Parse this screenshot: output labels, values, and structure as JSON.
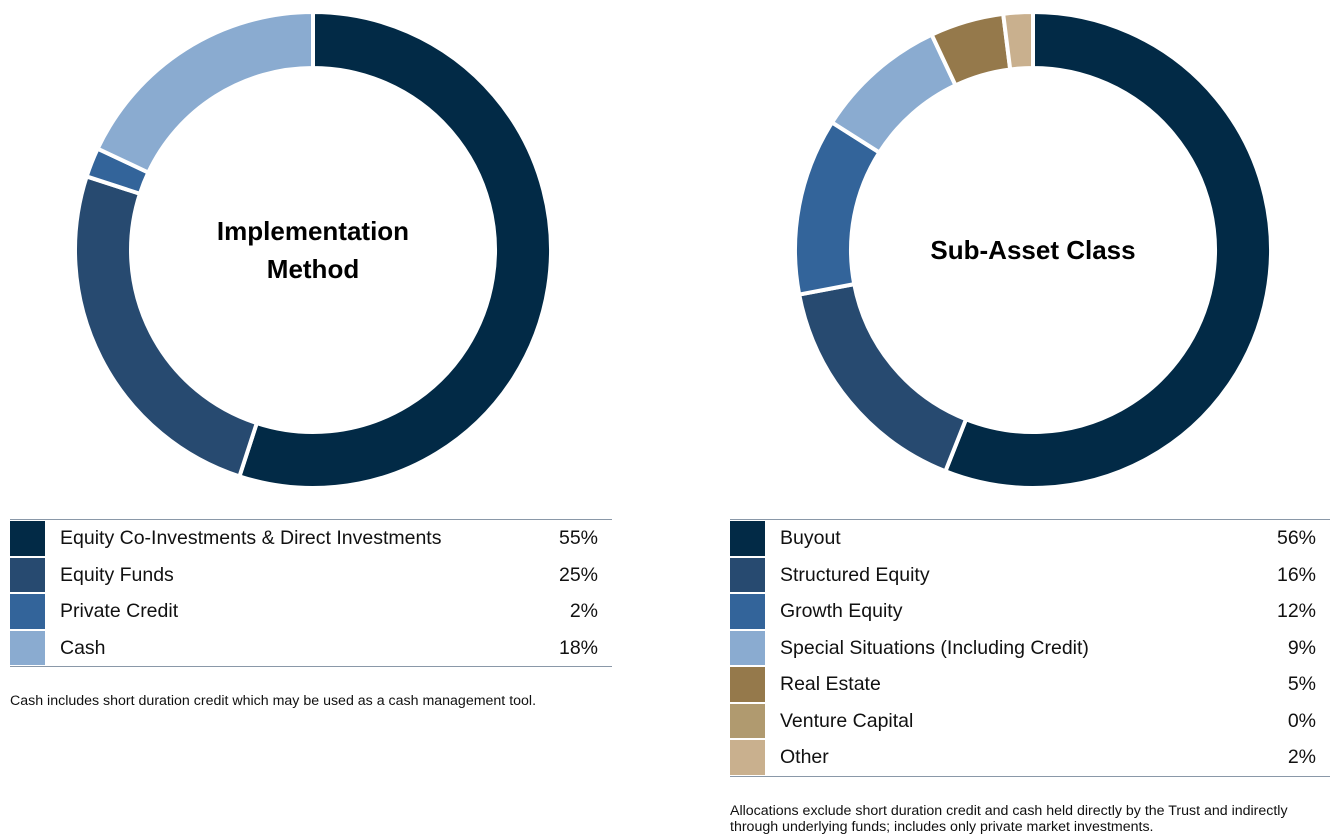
{
  "chart_data": [
    {
      "type": "pie",
      "title": "Implementation Method",
      "categories": [
        "Equity Co-Investments & Direct Investments",
        "Equity Funds",
        "Private Credit",
        "Cash"
      ],
      "values": [
        55,
        25,
        2,
        18
      ],
      "value_labels": [
        "55%",
        "25%",
        "2%",
        "18%"
      ],
      "colors": [
        "#022a46",
        "#274a70",
        "#33649a",
        "#8aabd0"
      ],
      "note": "Cash includes short duration credit which may be used as a cash management tool."
    },
    {
      "type": "pie",
      "title": "Sub-Asset Class",
      "categories": [
        "Buyout",
        "Structured Equity",
        "Growth Equity",
        "Special Situations (Including Credit)",
        "Real Estate",
        "Venture Capital",
        "Other"
      ],
      "values": [
        56,
        16,
        12,
        9,
        5,
        0,
        2
      ],
      "value_labels": [
        "56%",
        "16%",
        "12%",
        "9%",
        "5%",
        "0%",
        "2%"
      ],
      "colors": [
        "#022a46",
        "#274a70",
        "#33649a",
        "#8aabd0",
        "#95794b",
        "#b09a6f",
        "#c9b08e"
      ],
      "note": "Allocations exclude short duration credit and cash held directly by the Trust and indirectly through underlying funds; includes only private market investments."
    }
  ]
}
